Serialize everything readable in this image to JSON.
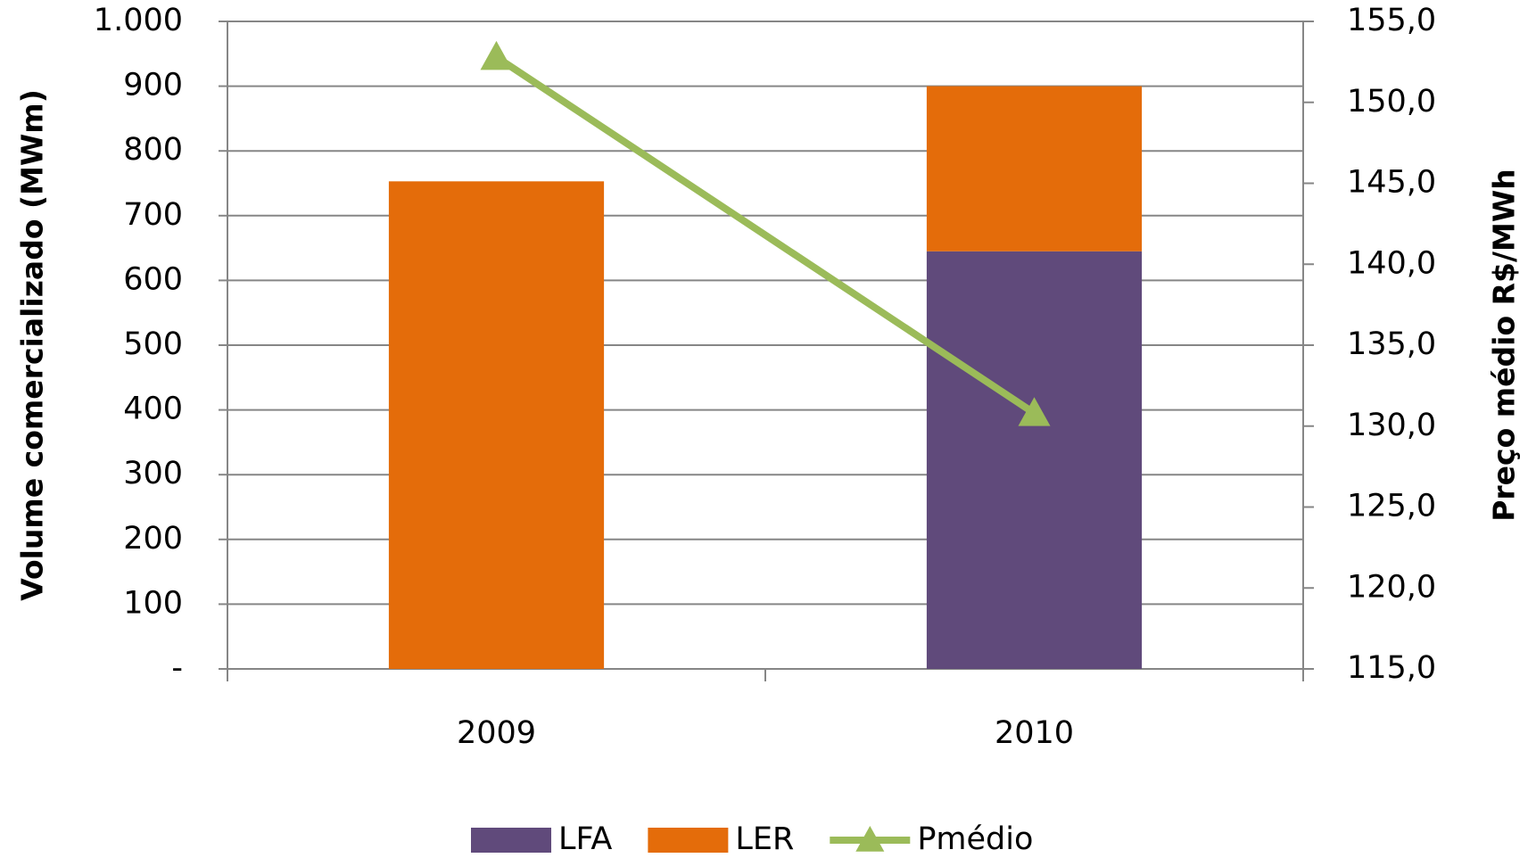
{
  "chart_data": {
    "type": "bar",
    "categories": [
      "2009",
      "2010"
    ],
    "series": [
      {
        "name": "LFA",
        "color": "#604a7b",
        "values": [
          0,
          645
        ]
      },
      {
        "name": "LER",
        "color": "#e46c0a",
        "values": [
          753,
          255
        ]
      },
      {
        "name": "Pmédio",
        "color": "#9bbb59",
        "type": "line",
        "axis": "y2",
        "values": [
          152.8,
          130.8
        ]
      }
    ],
    "stacked": true,
    "ylabel": "Volume comercializado  (MWm)",
    "y2label": "Preço médio R$/MWh",
    "ylim": [
      0,
      1000
    ],
    "yticks": [
      {
        "value": 0,
        "label": "-"
      },
      100,
      200,
      300,
      400,
      500,
      600,
      700,
      800,
      900,
      {
        "value": 1000,
        "label": "1.000"
      }
    ],
    "y2lim": [
      115,
      155
    ],
    "y2ticks": [
      {
        "value": 115,
        "label": "115,0"
      },
      {
        "value": 120,
        "label": "120,0"
      },
      {
        "value": 125,
        "label": "125,0"
      },
      {
        "value": 130,
        "label": "130,0"
      },
      {
        "value": 135,
        "label": "135,0"
      },
      {
        "value": 140,
        "label": "140,0"
      },
      {
        "value": 145,
        "label": "145,0"
      },
      {
        "value": 150,
        "label": "150,0"
      },
      {
        "value": 155,
        "label": "155,0"
      }
    ],
    "grid": true,
    "legend": "bottom"
  }
}
